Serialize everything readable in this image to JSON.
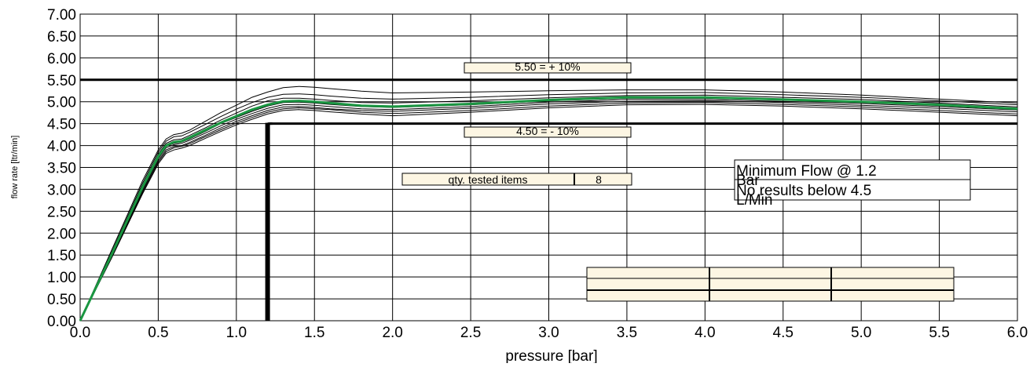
{
  "chart_data": {
    "type": "line",
    "xlabel": "pressure [bar]",
    "ylabel": "flow rate [ltr/min]",
    "xlim": [
      0,
      6
    ],
    "ylim": [
      0,
      7
    ],
    "x_ticks": [
      "0.0",
      "0.5",
      "1.0",
      "1.5",
      "2.0",
      "2.5",
      "3.0",
      "3.5",
      "4.0",
      "4.5",
      "5.0",
      "5.5",
      "6.0"
    ],
    "y_ticks": [
      "0.00",
      "0.50",
      "1.00",
      "1.50",
      "2.00",
      "2.50",
      "3.00",
      "3.50",
      "4.00",
      "4.50",
      "5.00",
      "5.50",
      "6.00",
      "6.50",
      "7.00"
    ],
    "grid": true,
    "reference_lines": [
      {
        "y": 5.5,
        "label": "5.50 = + 10%"
      },
      {
        "y": 4.5,
        "label": "4.50 = - 10%"
      }
    ],
    "threshold_marker": {
      "x": 1.2,
      "y_from": 0,
      "y_to": 4.5
    },
    "qty_tested": {
      "label": "qty. tested items",
      "value": "8"
    },
    "info_box": {
      "line1": "Minimum Flow @ 1.2",
      "line1_overflow": "Bar",
      "line2": "No results below 4.5",
      "line2_overflow": "L/Min"
    },
    "colors": {
      "average": "#1a9641",
      "samples": "#000000"
    },
    "average_series": {
      "x": [
        0,
        0.1,
        0.2,
        0.3,
        0.4,
        0.5,
        0.55,
        0.6,
        0.65,
        0.7,
        0.8,
        0.9,
        1.0,
        1.1,
        1.2,
        1.3,
        1.4,
        1.5,
        1.6,
        1.8,
        2.0,
        2.5,
        3.0,
        3.5,
        4.0,
        4.5,
        5.0,
        5.5,
        6.0
      ],
      "y": [
        0,
        0.75,
        1.5,
        2.28,
        3.05,
        3.75,
        4.0,
        4.08,
        4.1,
        4.18,
        4.35,
        4.52,
        4.67,
        4.82,
        4.93,
        5.01,
        5.02,
        5.0,
        4.97,
        4.91,
        4.89,
        4.95,
        5.04,
        5.1,
        5.1,
        5.05,
        5.0,
        4.93,
        4.84
      ]
    },
    "sample_series": [
      {
        "y": [
          0,
          0.8,
          1.6,
          2.4,
          3.2,
          3.9,
          4.15,
          4.25,
          4.28,
          4.35,
          4.55,
          4.75,
          4.92,
          5.1,
          5.22,
          5.32,
          5.35,
          5.33,
          5.3,
          5.24,
          5.2,
          5.22,
          5.25,
          5.27,
          5.27,
          5.22,
          5.15,
          5.06,
          4.97
        ]
      },
      {
        "y": [
          0,
          0.78,
          1.56,
          2.35,
          3.14,
          3.85,
          4.1,
          4.2,
          4.22,
          4.3,
          4.48,
          4.66,
          4.83,
          4.98,
          5.1,
          5.17,
          5.18,
          5.16,
          5.13,
          5.08,
          5.06,
          5.1,
          5.16,
          5.2,
          5.21,
          5.16,
          5.1,
          5.02,
          4.93
        ]
      },
      {
        "y": [
          0,
          0.76,
          1.52,
          2.3,
          3.09,
          3.8,
          4.05,
          4.13,
          4.15,
          4.23,
          4.4,
          4.58,
          4.74,
          4.9,
          5.02,
          5.08,
          5.08,
          5.06,
          5.03,
          4.98,
          4.97,
          5.02,
          5.09,
          5.14,
          5.15,
          5.1,
          5.05,
          4.97,
          4.88
        ]
      },
      {
        "y": [
          0,
          0.75,
          1.5,
          2.27,
          3.04,
          3.74,
          3.98,
          4.05,
          4.08,
          4.15,
          4.32,
          4.5,
          4.64,
          4.78,
          4.9,
          4.98,
          4.99,
          4.97,
          4.94,
          4.89,
          4.87,
          4.93,
          5.02,
          5.08,
          5.08,
          5.04,
          4.99,
          4.92,
          4.84
        ]
      },
      {
        "y": [
          0,
          0.74,
          1.48,
          2.24,
          3.0,
          3.7,
          3.95,
          4.02,
          4.05,
          4.12,
          4.28,
          4.45,
          4.6,
          4.73,
          4.85,
          4.93,
          4.94,
          4.92,
          4.89,
          4.84,
          4.82,
          4.89,
          4.99,
          5.05,
          5.05,
          5.01,
          4.96,
          4.89,
          4.81
        ]
      },
      {
        "y": [
          0,
          0.73,
          1.46,
          2.22,
          2.97,
          3.66,
          3.9,
          3.98,
          4.0,
          4.07,
          4.23,
          4.4,
          4.55,
          4.68,
          4.8,
          4.88,
          4.89,
          4.87,
          4.84,
          4.8,
          4.78,
          4.85,
          4.95,
          5.01,
          5.02,
          4.98,
          4.92,
          4.85,
          4.77
        ]
      },
      {
        "y": [
          0,
          0.72,
          1.44,
          2.19,
          2.93,
          3.62,
          3.86,
          3.95,
          3.98,
          4.04,
          4.2,
          4.36,
          4.51,
          4.64,
          4.76,
          4.84,
          4.86,
          4.84,
          4.82,
          4.76,
          4.73,
          4.8,
          4.9,
          4.97,
          4.98,
          4.94,
          4.88,
          4.8,
          4.72
        ]
      },
      {
        "y": [
          0,
          0.71,
          1.42,
          2.16,
          2.9,
          3.58,
          3.82,
          3.9,
          3.94,
          4.0,
          4.16,
          4.32,
          4.47,
          4.6,
          4.72,
          4.8,
          4.82,
          4.8,
          4.77,
          4.72,
          4.68,
          4.76,
          4.86,
          4.93,
          4.94,
          4.9,
          4.84,
          4.76,
          4.68
        ]
      }
    ]
  }
}
